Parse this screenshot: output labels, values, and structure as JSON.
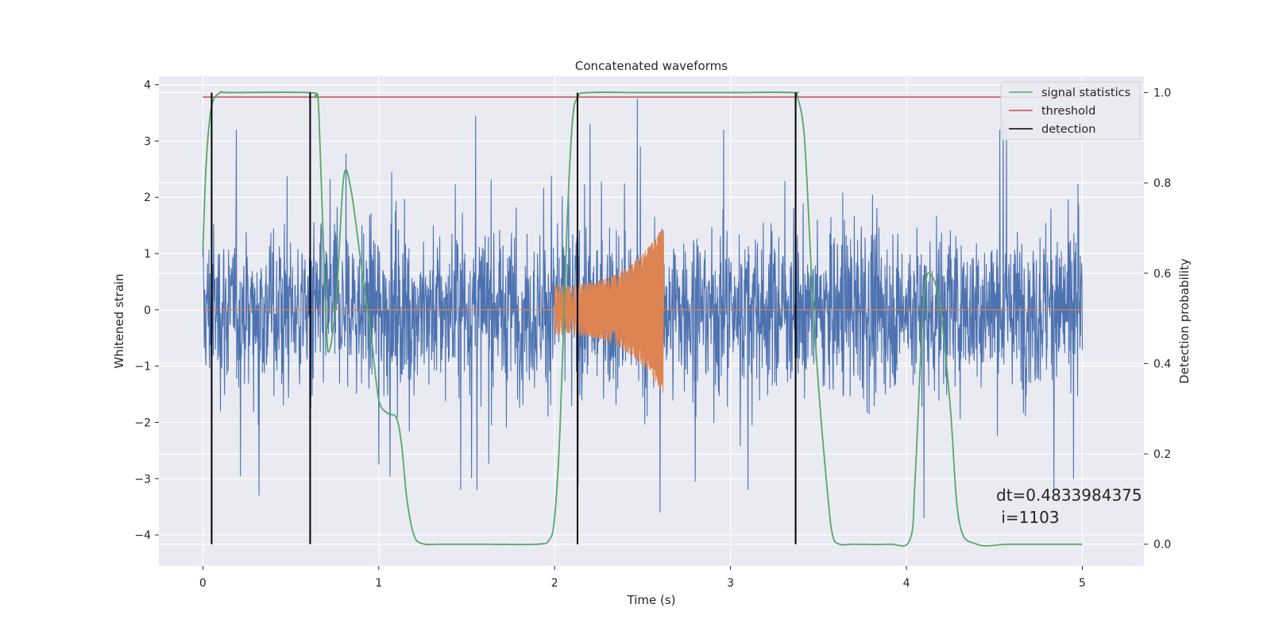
{
  "chart_data": {
    "type": "line",
    "title": "Concatenated waveforms",
    "xlabel": "Time (s)",
    "ylabel": "Whitened strain",
    "y2label": "Detection probability",
    "xlim": [
      -0.25,
      5.35
    ],
    "ylim": [
      -4.55,
      4.15
    ],
    "y2lim": [
      -0.048,
      1.036
    ],
    "xticks": [
      0,
      1,
      2,
      3,
      4,
      5
    ],
    "yticks": [
      -4,
      -3,
      -2,
      -1,
      0,
      1,
      2,
      3,
      4
    ],
    "y2ticks": [
      0.0,
      0.2,
      0.4,
      0.6,
      0.8,
      1.0
    ],
    "grid": true,
    "legend_position": "top-right",
    "colors": {
      "background": "#EAEAF2",
      "grid": "#FFFFFF",
      "strain": "#4C72B0",
      "signal": "#DD8452",
      "statistics": "#55A868",
      "threshold": "#C44E52",
      "detection": "#000000"
    },
    "series": [
      {
        "name": "",
        "role": "whitened-noise",
        "x_range": [
          0,
          5
        ],
        "envelope": 1.0,
        "sample_peaks": [
          [
            0.05,
            -3.05
          ],
          [
            0.32,
            -3.3
          ],
          [
            1.0,
            -2.75
          ],
          [
            1.55,
            3.45
          ],
          [
            2.2,
            3.3
          ],
          [
            2.47,
            3.75
          ],
          [
            2.6,
            -3.6
          ],
          [
            2.8,
            -3.05
          ],
          [
            4.1,
            -3.7
          ],
          [
            4.55,
            3.4
          ],
          [
            4.95,
            -3.0
          ]
        ]
      },
      {
        "name": "",
        "role": "injected-chirp",
        "x_range": [
          2.0,
          2.62
        ],
        "peak_amplitude": 1.5
      },
      {
        "name": "signal statistics",
        "x": [
          0,
          0.02,
          0.05,
          0.1,
          0.15,
          0.6,
          0.64,
          0.66,
          0.7,
          0.72,
          0.76,
          0.8,
          0.84,
          0.9,
          0.96,
          1.0,
          1.05,
          1.1,
          1.13,
          1.16,
          1.2,
          1.25,
          1.35,
          1.6,
          1.9,
          1.97,
          2.0,
          2.03,
          2.07,
          2.1,
          2.13,
          2.2,
          2.5,
          3.0,
          3.35,
          3.38,
          3.42,
          3.46,
          3.5,
          3.55,
          3.58,
          3.62,
          3.7,
          3.9,
          4.02,
          4.05,
          4.1,
          4.15,
          4.2,
          4.25,
          4.3,
          4.4,
          4.6,
          5.0
        ],
        "y": [
          0.65,
          0.85,
          0.97,
          1.0,
          1.0,
          1.0,
          0.99,
          0.95,
          0.5,
          0.43,
          0.55,
          0.81,
          0.79,
          0.62,
          0.45,
          0.32,
          0.29,
          0.28,
          0.22,
          0.1,
          0.02,
          0.001,
          0.0,
          0.0,
          0.0,
          0.01,
          0.06,
          0.25,
          0.7,
          0.93,
          0.99,
          1.0,
          1.0,
          1.0,
          1.0,
          0.99,
          0.9,
          0.6,
          0.35,
          0.12,
          0.02,
          0.0,
          0.0,
          0.0,
          0.01,
          0.15,
          0.55,
          0.59,
          0.5,
          0.3,
          0.05,
          0.0,
          0.0,
          0.0
        ]
      },
      {
        "name": "threshold",
        "x": [
          0,
          5
        ],
        "y": [
          0.99,
          0.99
        ]
      },
      {
        "name": "detection",
        "x": [
          0.05,
          0.61,
          2.13,
          3.37
        ]
      }
    ],
    "legend": [
      "signal statistics",
      "threshold",
      "detection"
    ],
    "annotation": "dt=0.4833984375\n i=1103",
    "annotation_lines": [
      "dt=0.4833984375",
      " i=1103"
    ]
  }
}
